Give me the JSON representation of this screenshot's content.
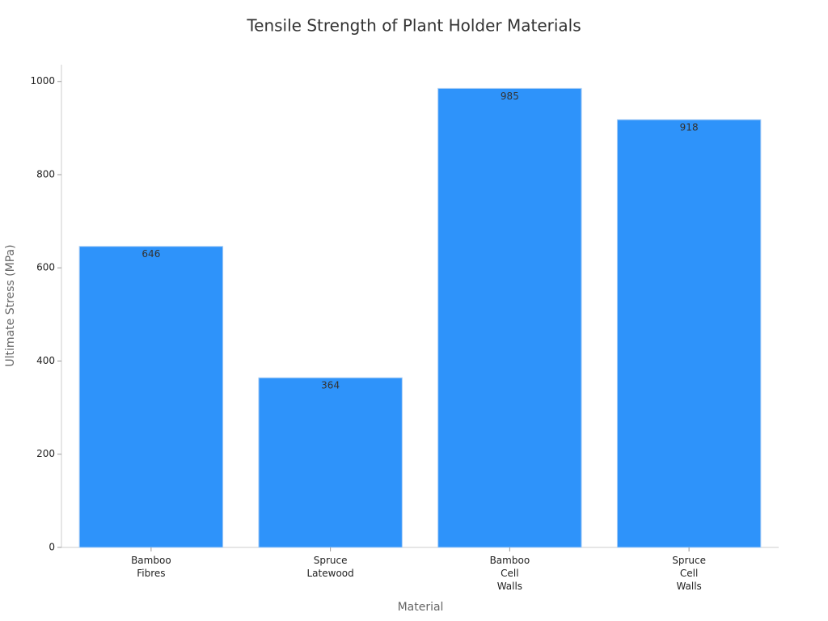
{
  "chart_data": {
    "type": "bar",
    "title": "Tensile Strength of Plant Holder Materials",
    "x_label": "Material",
    "y_label": "Ultimate Stress (MPa)",
    "categories": [
      "Bamboo Fibres",
      "Spruce Latewood",
      "Bamboo Cell Walls",
      "Spruce Cell Walls"
    ],
    "values": [
      646,
      364,
      985,
      918
    ],
    "color": "#2e93fa",
    "ylim": [
      0,
      1036
    ],
    "yticks": [
      0,
      200,
      400,
      600,
      800,
      1000
    ],
    "grid": false
  }
}
